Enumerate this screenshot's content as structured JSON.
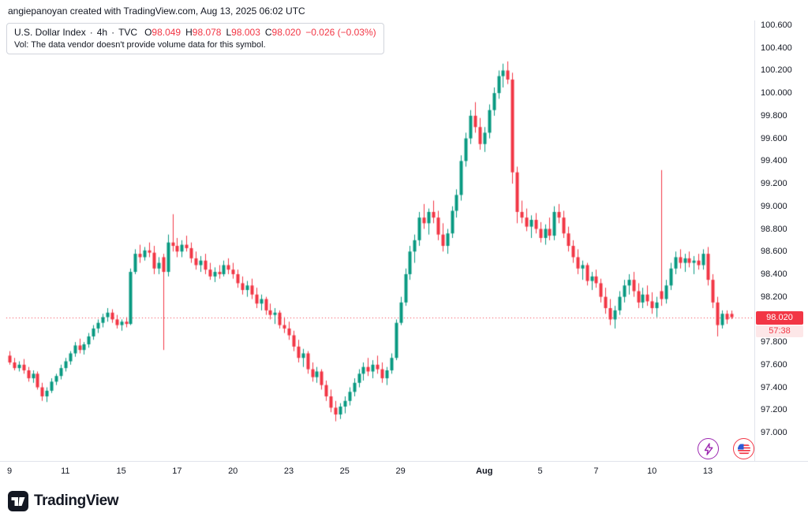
{
  "attribution": "angiepanoyan created with TradingView.com, Aug 13, 2025 06:02 UTC",
  "legend": {
    "symbol": "U.S. Dollar Index",
    "separator": "·",
    "interval": "4h",
    "exchange": "TVC",
    "ohlc": [
      {
        "k": "O",
        "v": "98.049"
      },
      {
        "k": "H",
        "v": "98.078"
      },
      {
        "k": "L",
        "v": "98.003"
      },
      {
        "k": "C",
        "v": "98.020"
      }
    ],
    "change": "−0.026 (−0.03%)",
    "volume_note": "Vol: The data vendor doesn't provide volume data for this symbol."
  },
  "price_scale": {
    "last_price_label": "98.020",
    "countdown": "57:38"
  },
  "footer": {
    "logo_text": "TradingView"
  },
  "icons": {
    "bottom_right": [
      "lightning-boost-icon",
      "us-flag-icon"
    ]
  },
  "chart_data": {
    "type": "candlestick",
    "title": "U.S. Dollar Index · 4h · TVC",
    "ylim": [
      97.0,
      100.6
    ],
    "last_price": 98.02,
    "grid": false,
    "colors": {
      "up": "#089981",
      "down": "#f23645",
      "last_price_line": "#f23645"
    },
    "price_ticks": [
      "100.600",
      "100.400",
      "100.200",
      "100.000",
      "99.800",
      "99.600",
      "99.400",
      "99.200",
      "99.000",
      "98.800",
      "98.600",
      "98.400",
      "98.200",
      "97.800",
      "97.600",
      "97.400",
      "97.200",
      "97.000"
    ],
    "x_ticks": [
      {
        "label": "9",
        "index": 0
      },
      {
        "label": "11",
        "index": 12
      },
      {
        "label": "15",
        "index": 24
      },
      {
        "label": "17",
        "index": 36
      },
      {
        "label": "20",
        "index": 48
      },
      {
        "label": "23",
        "index": 60
      },
      {
        "label": "25",
        "index": 72
      },
      {
        "label": "29",
        "index": 84
      },
      {
        "label": "Aug",
        "index": 102,
        "major": true
      },
      {
        "label": "5",
        "index": 114
      },
      {
        "label": "7",
        "index": 126
      },
      {
        "label": "10",
        "index": 138
      },
      {
        "label": "13",
        "index": 150
      }
    ],
    "candles": [
      [
        97.68,
        97.72,
        97.6,
        97.62
      ],
      [
        97.62,
        97.66,
        97.55,
        97.57
      ],
      [
        97.57,
        97.63,
        97.54,
        97.6
      ],
      [
        97.6,
        97.65,
        97.52,
        97.55
      ],
      [
        97.55,
        97.58,
        97.45,
        97.48
      ],
      [
        97.48,
        97.55,
        97.44,
        97.52
      ],
      [
        97.52,
        97.54,
        97.38,
        97.4
      ],
      [
        97.4,
        97.44,
        97.28,
        97.32
      ],
      [
        97.32,
        97.4,
        97.27,
        97.37
      ],
      [
        97.37,
        97.48,
        97.35,
        97.45
      ],
      [
        97.45,
        97.52,
        97.42,
        97.5
      ],
      [
        97.5,
        97.6,
        97.47,
        97.57
      ],
      [
        97.57,
        97.66,
        97.54,
        97.63
      ],
      [
        97.63,
        97.72,
        97.6,
        97.7
      ],
      [
        97.7,
        97.8,
        97.67,
        97.77
      ],
      [
        97.77,
        97.83,
        97.7,
        97.73
      ],
      [
        97.73,
        97.8,
        97.69,
        97.78
      ],
      [
        97.78,
        97.88,
        97.75,
        97.85
      ],
      [
        97.85,
        97.95,
        97.82,
        97.92
      ],
      [
        97.92,
        98.0,
        97.88,
        97.97
      ],
      [
        97.97,
        98.05,
        97.93,
        98.02
      ],
      [
        98.02,
        98.1,
        97.98,
        98.06
      ],
      [
        98.06,
        98.09,
        97.97,
        98.0
      ],
      [
        98.0,
        98.04,
        97.92,
        97.95
      ],
      [
        97.95,
        98.0,
        97.9,
        97.98
      ],
      [
        97.98,
        98.02,
        97.93,
        97.96
      ],
      [
        97.96,
        98.45,
        97.95,
        98.42
      ],
      [
        98.42,
        98.62,
        98.4,
        98.58
      ],
      [
        98.58,
        98.66,
        98.5,
        98.55
      ],
      [
        98.55,
        98.64,
        98.52,
        98.61
      ],
      [
        98.61,
        98.68,
        98.55,
        98.59
      ],
      [
        98.59,
        98.65,
        98.4,
        98.45
      ],
      [
        98.45,
        98.55,
        98.4,
        98.5
      ],
      [
        98.55,
        98.58,
        97.73,
        98.42
      ],
      [
        98.42,
        98.75,
        98.38,
        98.68
      ],
      [
        98.68,
        98.93,
        98.6,
        98.65
      ],
      [
        98.65,
        98.72,
        98.55,
        98.6
      ],
      [
        98.6,
        98.7,
        98.55,
        98.66
      ],
      [
        98.66,
        98.74,
        98.6,
        98.63
      ],
      [
        98.63,
        98.68,
        98.5,
        98.54
      ],
      [
        98.54,
        98.6,
        98.44,
        98.48
      ],
      [
        98.48,
        98.56,
        98.42,
        98.52
      ],
      [
        98.52,
        98.58,
        98.4,
        98.44
      ],
      [
        98.44,
        98.5,
        98.35,
        98.38
      ],
      [
        98.38,
        98.46,
        98.33,
        98.42
      ],
      [
        98.42,
        98.48,
        98.36,
        98.4
      ],
      [
        98.4,
        98.52,
        98.38,
        98.48
      ],
      [
        98.48,
        98.54,
        98.4,
        98.44
      ],
      [
        98.44,
        98.5,
        98.36,
        98.4
      ],
      [
        98.4,
        98.44,
        98.28,
        98.32
      ],
      [
        98.32,
        98.38,
        98.22,
        98.26
      ],
      [
        98.26,
        98.34,
        98.2,
        98.3
      ],
      [
        98.3,
        98.36,
        98.18,
        98.22
      ],
      [
        98.22,
        98.28,
        98.1,
        98.14
      ],
      [
        98.14,
        98.22,
        98.08,
        98.18
      ],
      [
        98.18,
        98.2,
        98.04,
        98.08
      ],
      [
        98.08,
        98.14,
        98.0,
        98.04
      ],
      [
        98.04,
        98.1,
        97.96,
        98.06
      ],
      [
        98.06,
        98.08,
        97.92,
        97.95
      ],
      [
        97.95,
        98.02,
        97.88,
        97.92
      ],
      [
        97.92,
        97.98,
        97.82,
        97.86
      ],
      [
        97.86,
        97.9,
        97.72,
        97.76
      ],
      [
        97.76,
        97.82,
        97.62,
        97.66
      ],
      [
        97.66,
        97.74,
        97.58,
        97.7
      ],
      [
        97.7,
        97.72,
        97.52,
        97.56
      ],
      [
        97.56,
        97.62,
        97.45,
        97.49
      ],
      [
        97.49,
        97.58,
        97.44,
        97.54
      ],
      [
        97.54,
        97.56,
        97.38,
        97.42
      ],
      [
        97.42,
        97.46,
        97.28,
        97.32
      ],
      [
        97.32,
        97.38,
        97.18,
        97.22
      ],
      [
        97.22,
        97.28,
        97.1,
        97.16
      ],
      [
        97.16,
        97.26,
        97.12,
        97.23
      ],
      [
        97.23,
        97.32,
        97.17,
        97.28
      ],
      [
        97.28,
        97.4,
        97.24,
        97.36
      ],
      [
        97.36,
        97.48,
        97.32,
        97.44
      ],
      [
        97.44,
        97.56,
        97.4,
        97.52
      ],
      [
        97.52,
        97.62,
        97.46,
        97.58
      ],
      [
        97.58,
        97.66,
        97.5,
        97.54
      ],
      [
        97.54,
        97.64,
        97.48,
        97.6
      ],
      [
        97.6,
        97.68,
        97.52,
        97.56
      ],
      [
        97.56,
        97.62,
        97.44,
        97.48
      ],
      [
        97.48,
        97.58,
        97.42,
        97.55
      ],
      [
        97.55,
        97.7,
        97.52,
        97.66
      ],
      [
        97.66,
        98.0,
        97.64,
        97.97
      ],
      [
        97.97,
        98.2,
        97.95,
        98.15
      ],
      [
        98.15,
        98.45,
        98.12,
        98.4
      ],
      [
        98.4,
        98.65,
        98.35,
        98.6
      ],
      [
        98.6,
        98.75,
        98.5,
        98.7
      ],
      [
        98.7,
        98.95,
        98.65,
        98.9
      ],
      [
        98.9,
        99.02,
        98.8,
        98.85
      ],
      [
        98.85,
        98.98,
        98.75,
        98.95
      ],
      [
        98.95,
        99.05,
        98.85,
        98.9
      ],
      [
        98.9,
        98.96,
        98.7,
        98.75
      ],
      [
        98.75,
        98.85,
        98.6,
        98.65
      ],
      [
        98.65,
        98.8,
        98.58,
        98.76
      ],
      [
        98.76,
        99.0,
        98.72,
        98.96
      ],
      [
        98.96,
        99.15,
        98.9,
        99.1
      ],
      [
        99.1,
        99.45,
        99.05,
        99.4
      ],
      [
        99.4,
        99.65,
        99.35,
        99.6
      ],
      [
        99.6,
        99.85,
        99.55,
        99.8
      ],
      [
        99.8,
        99.92,
        99.65,
        99.7
      ],
      [
        99.7,
        99.78,
        99.5,
        99.55
      ],
      [
        99.55,
        99.7,
        99.48,
        99.65
      ],
      [
        99.65,
        99.9,
        99.6,
        99.85
      ],
      [
        99.85,
        100.05,
        99.8,
        100.0
      ],
      [
        100.0,
        100.2,
        99.95,
        100.15
      ],
      [
        100.15,
        100.26,
        100.05,
        100.2
      ],
      [
        100.2,
        100.28,
        100.08,
        100.12
      ],
      [
        100.12,
        100.18,
        99.2,
        99.3
      ],
      [
        99.3,
        99.35,
        98.85,
        98.95
      ],
      [
        98.95,
        99.05,
        98.85,
        98.9
      ],
      [
        98.9,
        98.98,
        98.78,
        98.82
      ],
      [
        98.82,
        98.92,
        98.72,
        98.88
      ],
      [
        98.88,
        98.94,
        98.76,
        98.8
      ],
      [
        98.8,
        98.86,
        98.68,
        98.72
      ],
      [
        98.72,
        98.84,
        98.66,
        98.8
      ],
      [
        98.8,
        98.9,
        98.7,
        98.74
      ],
      [
        98.74,
        99.0,
        98.7,
        98.95
      ],
      [
        98.95,
        99.02,
        98.85,
        98.9
      ],
      [
        98.9,
        98.96,
        98.72,
        98.76
      ],
      [
        98.76,
        98.82,
        98.6,
        98.65
      ],
      [
        98.65,
        98.7,
        98.5,
        98.55
      ],
      [
        98.55,
        98.62,
        98.4,
        98.45
      ],
      [
        98.45,
        98.52,
        98.35,
        98.48
      ],
      [
        98.48,
        98.5,
        98.3,
        98.34
      ],
      [
        98.34,
        98.42,
        98.26,
        98.38
      ],
      [
        98.38,
        98.44,
        98.28,
        98.32
      ],
      [
        98.32,
        98.36,
        98.15,
        98.2
      ],
      [
        98.2,
        98.28,
        98.05,
        98.1
      ],
      [
        98.1,
        98.18,
        97.95,
        98.0
      ],
      [
        98.0,
        98.12,
        97.92,
        98.08
      ],
      [
        98.08,
        98.25,
        98.04,
        98.2
      ],
      [
        98.2,
        98.35,
        98.15,
        98.3
      ],
      [
        98.3,
        98.4,
        98.22,
        98.35
      ],
      [
        98.35,
        98.42,
        98.2,
        98.25
      ],
      [
        98.25,
        98.32,
        98.1,
        98.15
      ],
      [
        98.15,
        98.28,
        98.1,
        98.22
      ],
      [
        98.22,
        98.3,
        98.12,
        98.16
      ],
      [
        98.16,
        98.24,
        98.05,
        98.1
      ],
      [
        98.1,
        98.2,
        98.02,
        98.15
      ],
      [
        98.25,
        99.32,
        98.12,
        98.18
      ],
      [
        98.18,
        98.35,
        98.14,
        98.3
      ],
      [
        98.3,
        98.5,
        98.26,
        98.45
      ],
      [
        98.45,
        98.6,
        98.4,
        98.55
      ],
      [
        98.55,
        98.62,
        98.45,
        98.5
      ],
      [
        98.5,
        98.58,
        98.42,
        98.54
      ],
      [
        98.54,
        98.6,
        98.46,
        98.5
      ],
      [
        98.5,
        98.56,
        98.4,
        98.52
      ],
      [
        98.52,
        98.58,
        98.44,
        98.48
      ],
      [
        98.48,
        98.62,
        98.44,
        98.58
      ],
      [
        98.58,
        98.64,
        98.3,
        98.35
      ],
      [
        98.35,
        98.4,
        98.1,
        98.15
      ],
      [
        98.15,
        98.2,
        97.85,
        97.95
      ],
      [
        97.95,
        98.08,
        97.92,
        98.05
      ],
      [
        98.05,
        98.08,
        97.96,
        98.0
      ],
      [
        98.049,
        98.078,
        98.003,
        98.02
      ]
    ]
  }
}
